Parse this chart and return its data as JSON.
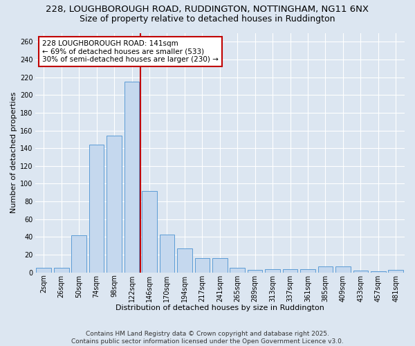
{
  "title_line1": "228, LOUGHBOROUGH ROAD, RUDDINGTON, NOTTINGHAM, NG11 6NX",
  "title_line2": "Size of property relative to detached houses in Ruddington",
  "xlabel": "Distribution of detached houses by size in Ruddington",
  "ylabel": "Number of detached properties",
  "categories": [
    "2sqm",
    "26sqm",
    "50sqm",
    "74sqm",
    "98sqm",
    "122sqm",
    "146sqm",
    "170sqm",
    "194sqm",
    "217sqm",
    "241sqm",
    "265sqm",
    "289sqm",
    "313sqm",
    "337sqm",
    "361sqm",
    "385sqm",
    "409sqm",
    "433sqm",
    "457sqm",
    "481sqm"
  ],
  "values": [
    5,
    5,
    42,
    144,
    154,
    215,
    92,
    43,
    27,
    16,
    16,
    5,
    3,
    4,
    4,
    4,
    7,
    7,
    2,
    1,
    3
  ],
  "bar_color": "#c5d8ee",
  "bar_edge_color": "#5b9bd5",
  "vline_x_index": 5,
  "vline_color": "#c00000",
  "annotation_text": "228 LOUGHBOROUGH ROAD: 141sqm\n← 69% of detached houses are smaller (533)\n30% of semi-detached houses are larger (230) →",
  "annotation_box_color": "#ffffff",
  "annotation_edge_color": "#c00000",
  "ylim": [
    0,
    270
  ],
  "yticks": [
    0,
    20,
    40,
    60,
    80,
    100,
    120,
    140,
    160,
    180,
    200,
    220,
    240,
    260
  ],
  "bg_color": "#dce6f1",
  "plot_bg_color": "#dce6f1",
  "grid_color": "#ffffff",
  "footer_text": "Contains HM Land Registry data © Crown copyright and database right 2025.\nContains public sector information licensed under the Open Government Licence v3.0.",
  "title1_fontsize": 9.5,
  "title2_fontsize": 9,
  "label_fontsize": 8,
  "tick_fontsize": 7,
  "annotation_fontsize": 7.5,
  "footer_fontsize": 6.5
}
